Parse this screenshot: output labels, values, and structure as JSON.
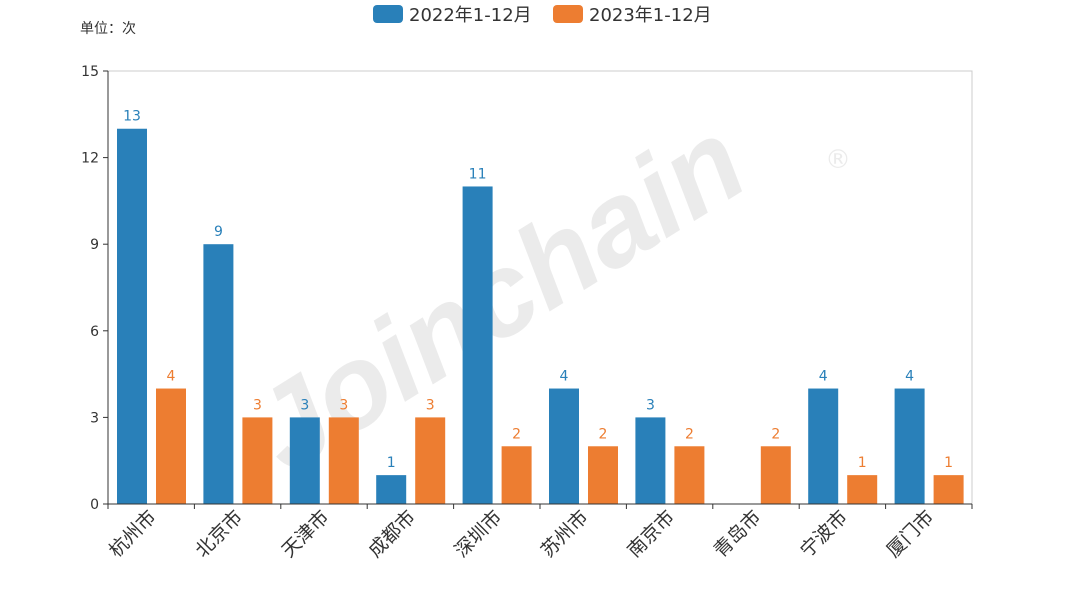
{
  "chart_data": {
    "type": "bar",
    "unit_label": "单位：次",
    "categories": [
      "杭州市",
      "北京市",
      "天津市",
      "成都市",
      "深圳市",
      "苏州市",
      "南京市",
      "青岛市",
      "宁波市",
      "厦门市"
    ],
    "series": [
      {
        "name": "2022年1-12月",
        "color": "#2980b9",
        "values": [
          13,
          9,
          3,
          1,
          11,
          4,
          3,
          0,
          4,
          4
        ]
      },
      {
        "name": "2023年1-12月",
        "color": "#ed7d31",
        "values": [
          4,
          3,
          3,
          3,
          2,
          2,
          2,
          2,
          1,
          1
        ]
      }
    ],
    "ylim": [
      0,
      15
    ],
    "yticks": [
      0,
      3,
      6,
      9,
      12,
      15
    ],
    "legend_position": "top-center",
    "watermark": "Joinchain®"
  }
}
